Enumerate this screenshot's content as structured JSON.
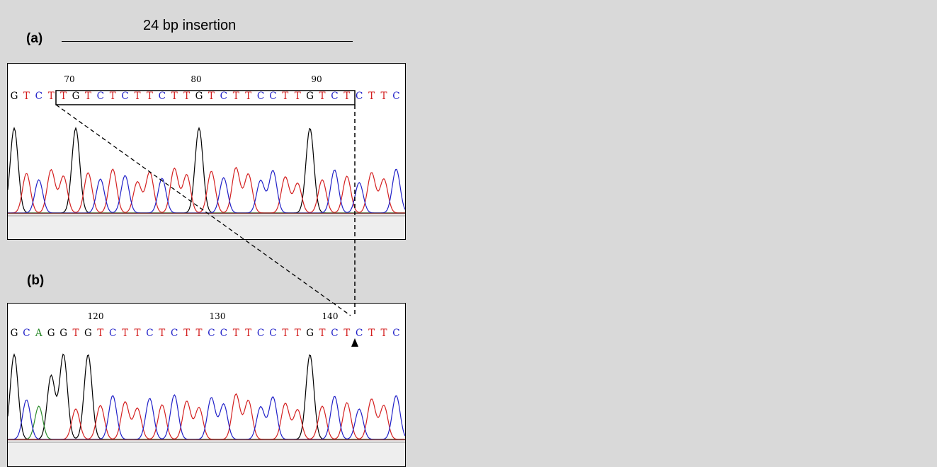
{
  "title": "24 bp insertion",
  "panels": [
    {
      "label": "(a)",
      "ruler": [
        "70",
        "80",
        "90"
      ],
      "sequence": "GTCTTGTCTCTTCTTGTCTTCCTTGTCTCTTC"
    },
    {
      "label": "(b)",
      "ruler": [
        "120",
        "130",
        "140"
      ],
      "sequence": "GCAGGTGTCTTCTCTTCCTTCCTTGTCTCTTC"
    }
  ],
  "base_colors": {
    "G": "#000000",
    "A": "#2a8a2a",
    "T": "#d42020",
    "C": "#2020c8"
  }
}
